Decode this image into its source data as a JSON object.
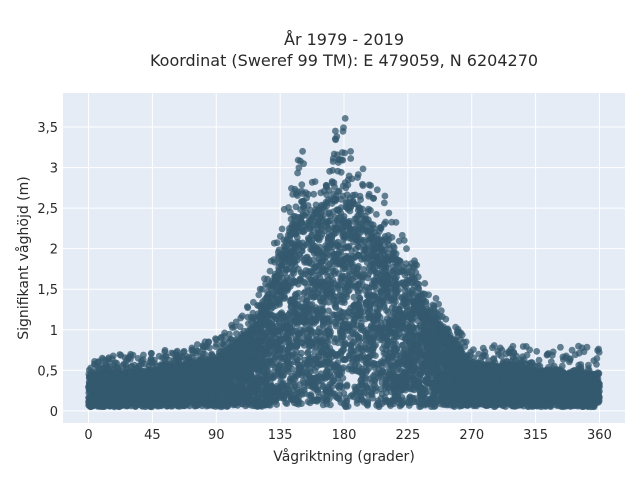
{
  "chart_data": {
    "type": "scatter",
    "title_line1": "År 1979 - 2019",
    "title_line2": "Koordinat (Sweref 99 TM): E 479059, N 6204270",
    "xlabel": "Vågriktning (grader)",
    "ylabel": "Signifikant våghöjd (m)",
    "xlim": [
      -18,
      378
    ],
    "ylim": [
      -0.15,
      3.92
    ],
    "x_ticks": [
      0,
      45,
      90,
      135,
      180,
      225,
      270,
      315,
      360
    ],
    "x_tick_labels": [
      "0",
      "45",
      "90",
      "135",
      "180",
      "225",
      "270",
      "315",
      "360"
    ],
    "y_ticks": [
      0,
      0.5,
      1,
      1.5,
      2,
      2.5,
      3,
      3.5
    ],
    "y_tick_labels": [
      "0",
      "0,5",
      "1",
      "1,5",
      "2",
      "2,5",
      "3",
      "3,5"
    ],
    "grid": true,
    "marker_color": "#34596f",
    "plot_bg": "#e5ecf6",
    "envelope_upper": {
      "x": [
        0,
        20,
        45,
        70,
        90,
        105,
        120,
        135,
        145,
        150,
        155,
        160,
        165,
        170,
        175,
        180,
        185,
        190,
        200,
        210,
        225,
        240,
        255,
        270,
        290,
        315,
        340,
        360
      ],
      "y": [
        0.65,
        0.72,
        0.72,
        0.8,
        0.9,
        1.15,
        1.45,
        2.4,
        3.0,
        3.3,
        3.2,
        2.8,
        2.7,
        3.1,
        3.55,
        3.8,
        3.5,
        3.2,
        2.8,
        2.7,
        2.0,
        1.55,
        1.1,
        0.85,
        0.8,
        0.8,
        0.8,
        0.8
      ]
    },
    "envelope_dense": {
      "x": [
        0,
        45,
        90,
        120,
        135,
        150,
        160,
        175,
        185,
        200,
        225,
        250,
        270,
        315,
        360
      ],
      "y": [
        0.45,
        0.5,
        0.65,
        1.1,
        1.9,
        2.6,
        2.4,
        2.7,
        2.6,
        2.3,
        1.7,
        1.0,
        0.6,
        0.5,
        0.45
      ]
    },
    "lower_bound_m": 0.05,
    "approx_point_count": 9000
  }
}
